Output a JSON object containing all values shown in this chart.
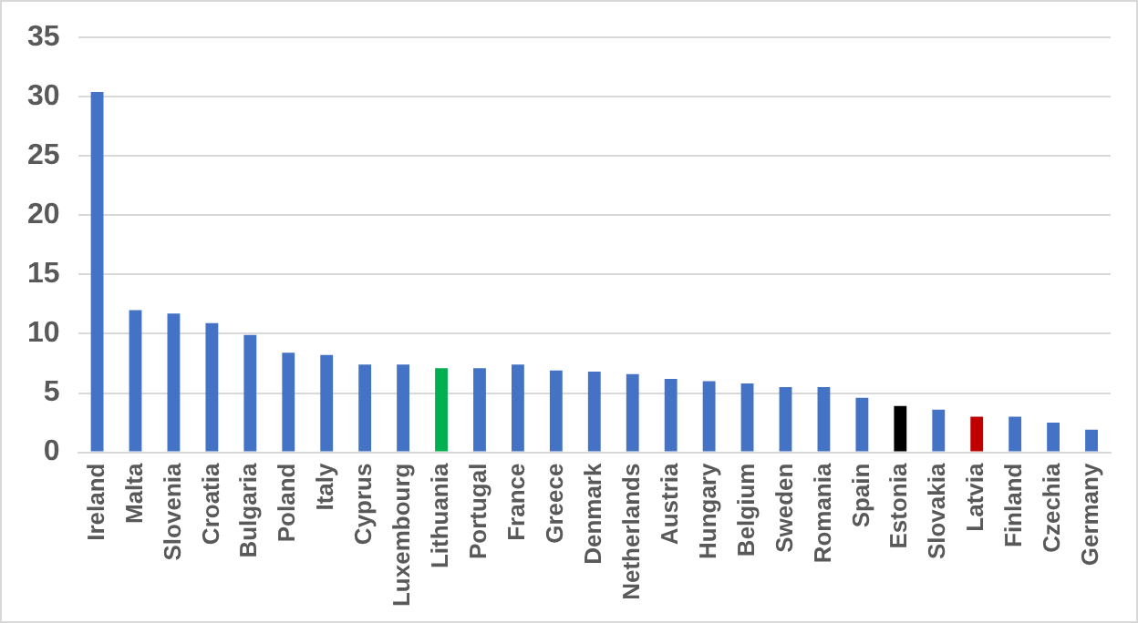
{
  "chart_data": {
    "type": "bar",
    "categories": [
      "Ireland",
      "Malta",
      "Slovenia",
      "Croatia",
      "Bulgaria",
      "Poland",
      "Italy",
      "Cyprus",
      "Luxembourg",
      "Lithuania",
      "Portugal",
      "France",
      "Greece",
      "Denmark",
      "Netherlands",
      "Austria",
      "Hungary",
      "Belgium",
      "Sweden",
      "Romania",
      "Spain",
      "Estonia",
      "Slovakia",
      "Latvia",
      "Finland",
      "Czechia",
      "Germany"
    ],
    "values": [
      30.4,
      12.0,
      11.7,
      10.9,
      9.9,
      8.4,
      8.2,
      7.4,
      7.4,
      7.1,
      7.1,
      7.4,
      6.9,
      6.8,
      6.6,
      6.2,
      6.0,
      5.8,
      5.5,
      5.5,
      4.6,
      3.9,
      3.6,
      3.0,
      3.0,
      2.5,
      1.9
    ],
    "colors": [
      "#4472c4",
      "#4472c4",
      "#4472c4",
      "#4472c4",
      "#4472c4",
      "#4472c4",
      "#4472c4",
      "#4472c4",
      "#4472c4",
      "#00b050",
      "#4472c4",
      "#4472c4",
      "#4472c4",
      "#4472c4",
      "#4472c4",
      "#4472c4",
      "#4472c4",
      "#4472c4",
      "#4472c4",
      "#4472c4",
      "#4472c4",
      "#000000",
      "#4472c4",
      "#c00000",
      "#4472c4",
      "#4472c4",
      "#4472c4"
    ],
    "ylim": [
      0,
      35
    ],
    "yticks": [
      0,
      5,
      10,
      15,
      20,
      25,
      30,
      35
    ],
    "grid": "y",
    "legend": false
  }
}
